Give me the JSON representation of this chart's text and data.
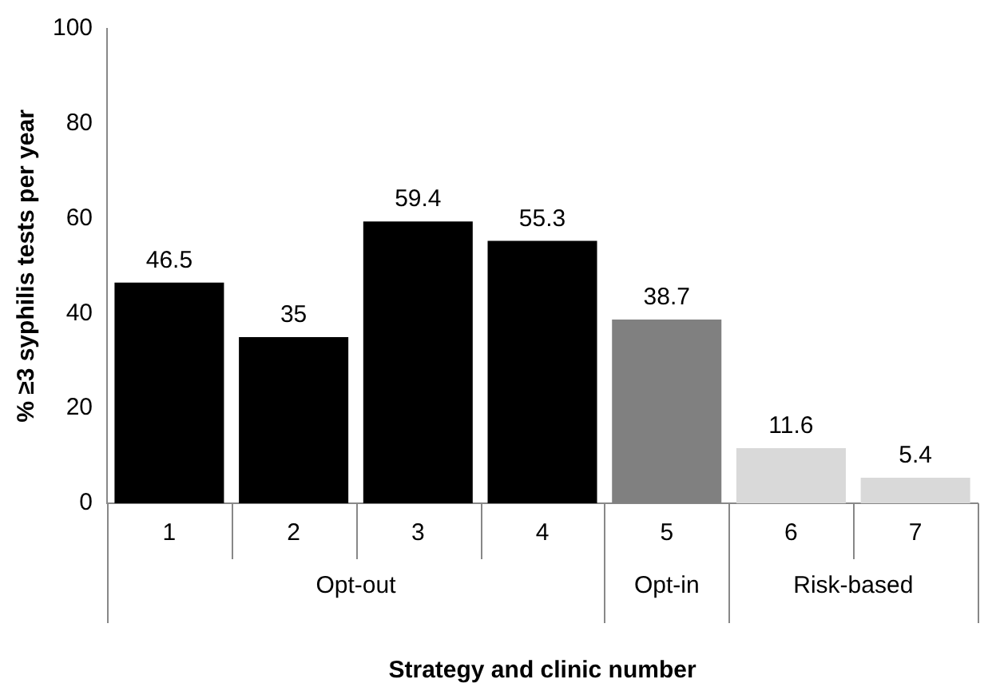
{
  "chart_data": {
    "type": "bar",
    "xlabel": "Strategy and clinic number",
    "ylabel": "% ≥3 syphilis tests per year",
    "categories": [
      "1",
      "2",
      "3",
      "4",
      "5",
      "6",
      "7"
    ],
    "values": [
      46.5,
      35,
      59.4,
      55.3,
      38.7,
      11.6,
      5.4
    ],
    "colors": [
      "#000000",
      "#000000",
      "#000000",
      "#000000",
      "#808080",
      "#d9d9d9",
      "#d9d9d9"
    ],
    "ylim": [
      0,
      100
    ],
    "yticks": [
      0,
      20,
      40,
      60,
      80,
      100
    ],
    "grid": false,
    "legend": false,
    "data_labels": true,
    "annotations": [
      "Opt-out",
      "Opt-in",
      "Risk-based"
    ]
  }
}
